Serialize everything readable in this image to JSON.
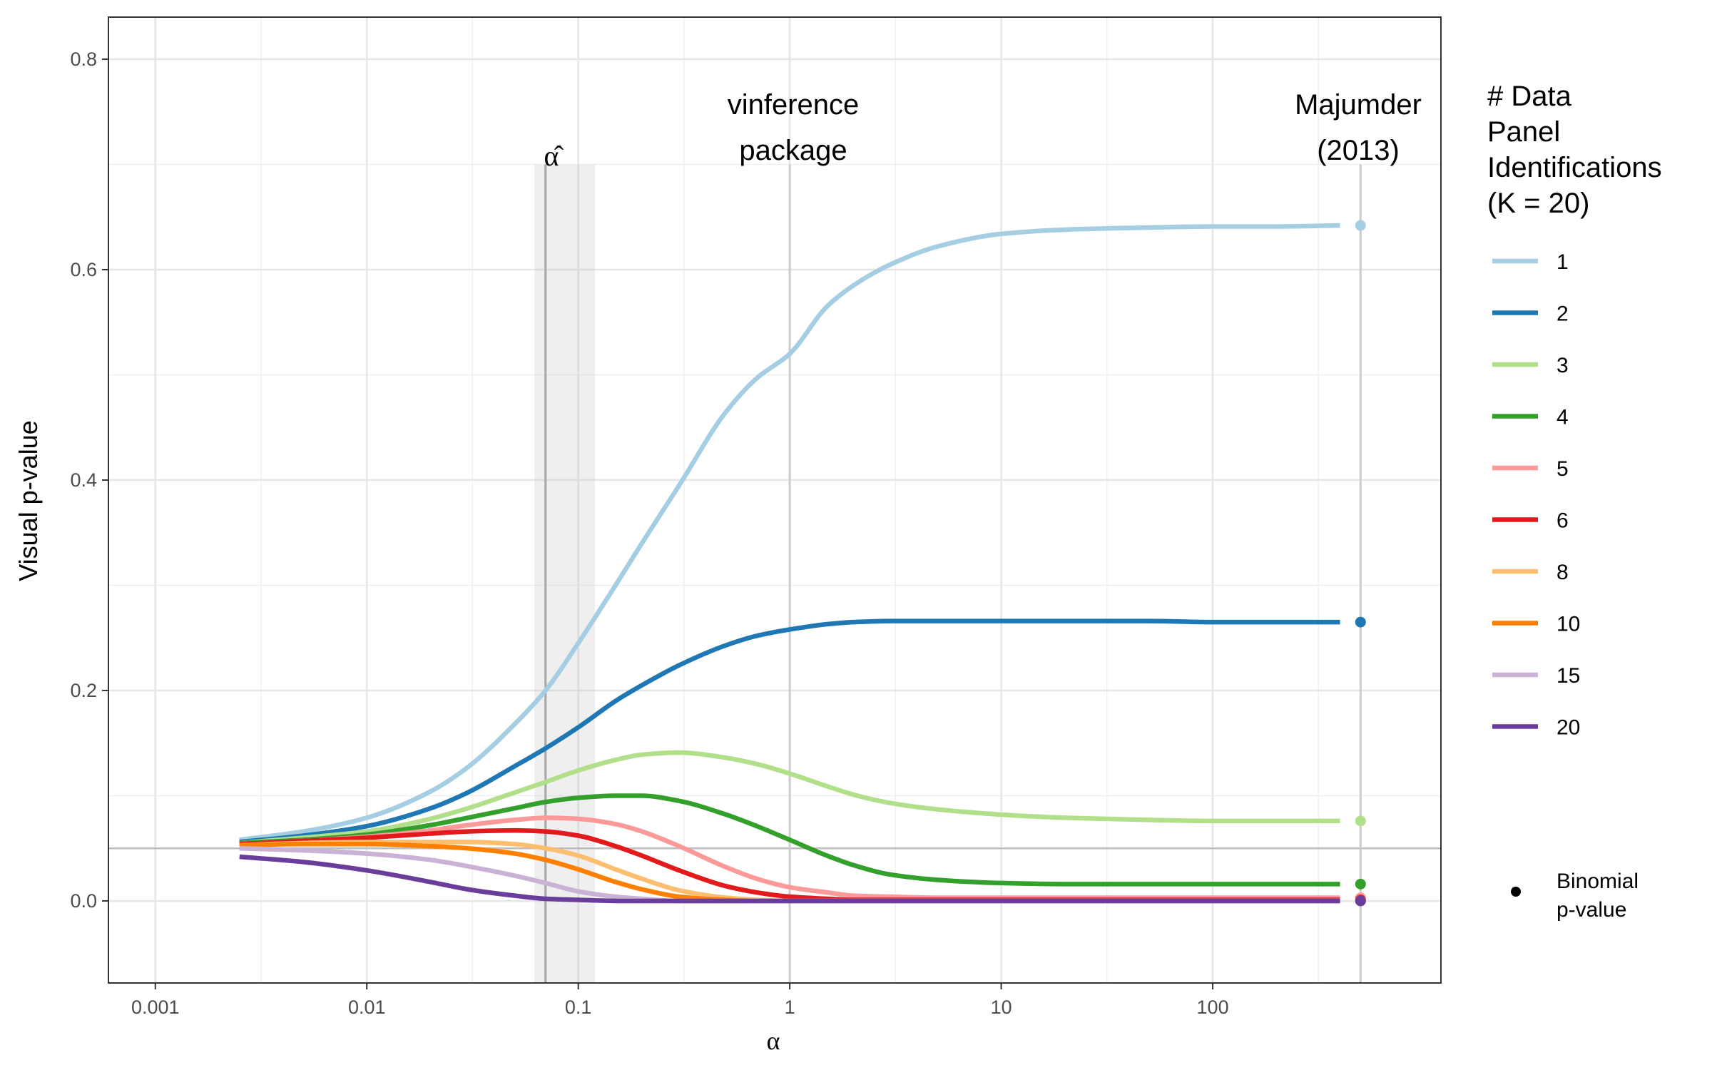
{
  "chart_data": {
    "type": "line",
    "xlabel": "α",
    "ylabel": "Visual p-value",
    "x_scale": "log10",
    "xlim": [
      0.0006,
      1200
    ],
    "ylim": [
      -0.078,
      0.84
    ],
    "x_ticks": [
      {
        "value": 0.001,
        "label": "0.001"
      },
      {
        "value": 0.01,
        "label": "0.01"
      },
      {
        "value": 0.1,
        "label": "0.1"
      },
      {
        "value": 1,
        "label": "1"
      },
      {
        "value": 10,
        "label": "10"
      },
      {
        "value": 100,
        "label": "100"
      }
    ],
    "y_ticks": [
      {
        "value": 0.0,
        "label": "0.0"
      },
      {
        "value": 0.2,
        "label": "0.2"
      },
      {
        "value": 0.4,
        "label": "0.4"
      },
      {
        "value": 0.6,
        "label": "0.6"
      },
      {
        "value": 0.8,
        "label": "0.8"
      }
    ],
    "grid": true,
    "reference_lines": {
      "horizontal_y": 0.05,
      "alpha_hat": {
        "x": 0.07,
        "label": "α̂",
        "band": [
          0.062,
          0.12
        ]
      },
      "vinference": {
        "x": 1,
        "label_lines": [
          "vinference",
          "package"
        ]
      },
      "majumder": {
        "x": 500,
        "label_lines": [
          "Majumder",
          "(2013)"
        ]
      }
    },
    "legend": {
      "title_lines": [
        "# Data",
        "Panel",
        "Identifications",
        "(K = 20)"
      ],
      "position": "right",
      "binomial_label_lines": [
        "Binomial",
        "p-value"
      ]
    },
    "x": [
      0.0025,
      0.005,
      0.01,
      0.02,
      0.03,
      0.05,
      0.07,
      0.1,
      0.15,
      0.2,
      0.3,
      0.5,
      0.7,
      1,
      1.5,
      2,
      3,
      5,
      10,
      20,
      50,
      100,
      200,
      400
    ],
    "series": [
      {
        "name": "1",
        "color": "#a6cee3",
        "binomial": 0.642,
        "values": [
          0.058,
          0.066,
          0.079,
          0.104,
          0.127,
          0.168,
          0.2,
          0.245,
          0.3,
          0.34,
          0.395,
          0.465,
          0.497,
          0.52,
          0.565,
          0.585,
          0.605,
          0.622,
          0.634,
          0.638,
          0.64,
          0.641,
          0.641,
          0.642
        ]
      },
      {
        "name": "2",
        "color": "#1f78b4",
        "binomial": 0.265,
        "values": [
          0.056,
          0.062,
          0.071,
          0.088,
          0.103,
          0.128,
          0.145,
          0.165,
          0.19,
          0.205,
          0.224,
          0.243,
          0.252,
          0.258,
          0.263,
          0.265,
          0.266,
          0.266,
          0.266,
          0.266,
          0.266,
          0.265,
          0.265,
          0.265
        ]
      },
      {
        "name": "3",
        "color": "#b2df8a",
        "binomial": 0.076,
        "values": [
          0.055,
          0.06,
          0.066,
          0.078,
          0.088,
          0.103,
          0.113,
          0.124,
          0.134,
          0.139,
          0.141,
          0.136,
          0.13,
          0.121,
          0.109,
          0.101,
          0.093,
          0.087,
          0.082,
          0.079,
          0.077,
          0.076,
          0.076,
          0.076
        ]
      },
      {
        "name": "4",
        "color": "#33a02c",
        "binomial": 0.016,
        "values": [
          0.055,
          0.058,
          0.063,
          0.072,
          0.079,
          0.088,
          0.094,
          0.098,
          0.1,
          0.1,
          0.095,
          0.082,
          0.071,
          0.058,
          0.043,
          0.034,
          0.025,
          0.02,
          0.017,
          0.016,
          0.016,
          0.016,
          0.016,
          0.016
        ]
      },
      {
        "name": "5",
        "color": "#fb9a99",
        "binomial": 0.003,
        "values": [
          0.054,
          0.057,
          0.061,
          0.067,
          0.072,
          0.077,
          0.079,
          0.078,
          0.073,
          0.066,
          0.052,
          0.032,
          0.021,
          0.013,
          0.008,
          0.005,
          0.004,
          0.003,
          0.003,
          0.003,
          0.003,
          0.003,
          0.003,
          0.003
        ]
      },
      {
        "name": "6",
        "color": "#e31a1c",
        "binomial": 0.001,
        "values": [
          0.054,
          0.057,
          0.06,
          0.064,
          0.066,
          0.067,
          0.066,
          0.062,
          0.052,
          0.043,
          0.029,
          0.014,
          0.008,
          0.004,
          0.002,
          0.001,
          0.001,
          0.001,
          0.001,
          0.001,
          0.001,
          0.001,
          0.001,
          0.001
        ]
      },
      {
        "name": "8",
        "color": "#fdbf6f",
        "binomial": 0.0,
        "values": [
          0.053,
          0.055,
          0.056,
          0.056,
          0.056,
          0.054,
          0.05,
          0.043,
          0.03,
          0.021,
          0.01,
          0.003,
          0.001,
          0.0,
          0.0,
          0.0,
          0.0,
          0.0,
          0.0,
          0.0,
          0.0,
          0.0,
          0.0,
          0.0
        ]
      },
      {
        "name": "10",
        "color": "#ff7f00",
        "binomial": 0.0,
        "values": [
          0.053,
          0.054,
          0.054,
          0.052,
          0.05,
          0.045,
          0.039,
          0.03,
          0.018,
          0.011,
          0.004,
          0.001,
          0.0,
          0.0,
          0.0,
          0.0,
          0.0,
          0.0,
          0.0,
          0.0,
          0.0,
          0.0,
          0.0,
          0.0
        ]
      },
      {
        "name": "15",
        "color": "#cab2d6",
        "binomial": 0.0,
        "values": [
          0.05,
          0.048,
          0.045,
          0.039,
          0.033,
          0.024,
          0.017,
          0.009,
          0.004,
          0.002,
          0.0,
          0.0,
          0.0,
          0.0,
          0.0,
          0.0,
          0.0,
          0.0,
          0.0,
          0.0,
          0.0,
          0.0,
          0.0,
          0.0
        ]
      },
      {
        "name": "20",
        "color": "#6a3d9a",
        "binomial": 0.0,
        "values": [
          0.042,
          0.037,
          0.029,
          0.018,
          0.011,
          0.005,
          0.002,
          0.001,
          0.0,
          0.0,
          0.0,
          0.0,
          0.0,
          0.0,
          0.0,
          0.0,
          0.0,
          0.0,
          0.0,
          0.0,
          0.0,
          0.0,
          0.0,
          0.0
        ]
      }
    ]
  }
}
